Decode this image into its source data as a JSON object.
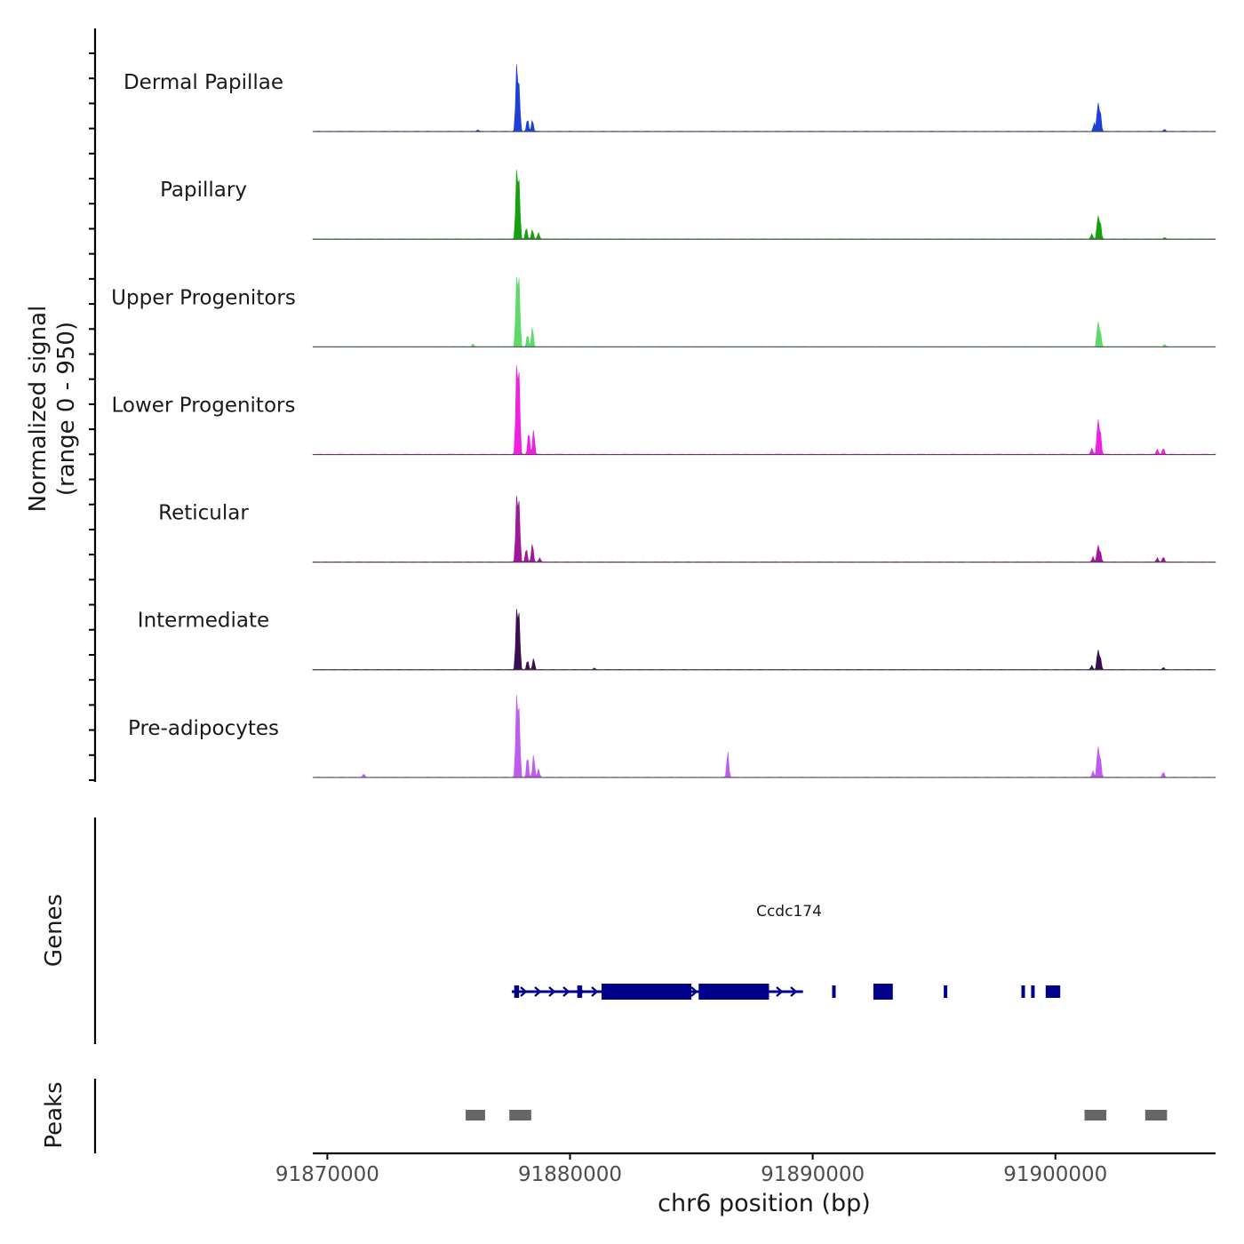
{
  "chart_data": {
    "type": "area",
    "title": "",
    "ylabel_line1": "Normalized signal",
    "ylabel_line2": "(range 0 - 950)",
    "xlabel": "chr6 position (bp)",
    "xlim": [
      91869400,
      91906600
    ],
    "ylim": [
      0,
      950
    ],
    "xticks": [
      {
        "value": 91870000,
        "label": "91870000"
      },
      {
        "value": 91880000,
        "label": "91880000"
      },
      {
        "value": 91890000,
        "label": "91890000"
      },
      {
        "value": 91900000,
        "label": "91900000"
      }
    ],
    "coverage_tracks": [
      {
        "name": "Dermal Papillae",
        "color": "#1E40D6",
        "peaks": [
          [
            91877800,
            620
          ],
          [
            91877900,
            430
          ],
          [
            91878250,
            120
          ],
          [
            91878450,
            110
          ],
          [
            91901600,
            80
          ],
          [
            91901750,
            270
          ],
          [
            91901850,
            190
          ],
          [
            91904500,
            20
          ],
          [
            91876200,
            15
          ]
        ]
      },
      {
        "name": "Papillary",
        "color": "#16A00E",
        "peaks": [
          [
            91877800,
            640
          ],
          [
            91877900,
            540
          ],
          [
            91878200,
            110
          ],
          [
            91878450,
            90
          ],
          [
            91878700,
            60
          ],
          [
            91901500,
            50
          ],
          [
            91901750,
            220
          ],
          [
            91901850,
            160
          ],
          [
            91904500,
            15
          ]
        ]
      },
      {
        "name": "Upper Progenitors",
        "color": "#5FD96A",
        "peaks": [
          [
            91877800,
            640
          ],
          [
            91877900,
            630
          ],
          [
            91878250,
            120
          ],
          [
            91878450,
            190
          ],
          [
            91876000,
            25
          ],
          [
            91901750,
            240
          ],
          [
            91901850,
            150
          ],
          [
            91904500,
            20
          ]
        ]
      },
      {
        "name": "Lower Progenitors",
        "color": "#F020E0",
        "peaks": [
          [
            91877800,
            820
          ],
          [
            91877900,
            750
          ],
          [
            91878300,
            220
          ],
          [
            91878500,
            240
          ],
          [
            91901500,
            60
          ],
          [
            91901750,
            330
          ],
          [
            91901850,
            220
          ],
          [
            91904200,
            50
          ],
          [
            91904450,
            60
          ]
        ]
      },
      {
        "name": "Reticular",
        "color": "#A0189A",
        "peaks": [
          [
            91877800,
            610
          ],
          [
            91877900,
            560
          ],
          [
            91878200,
            130
          ],
          [
            91878450,
            180
          ],
          [
            91878750,
            40
          ],
          [
            91901550,
            50
          ],
          [
            91901750,
            160
          ],
          [
            91901850,
            100
          ],
          [
            91904200,
            40
          ],
          [
            91904450,
            50
          ]
        ]
      },
      {
        "name": "Intermediate",
        "color": "#3A0F52",
        "peaks": [
          [
            91877800,
            560
          ],
          [
            91877900,
            520
          ],
          [
            91878250,
            90
          ],
          [
            91878500,
            110
          ],
          [
            91881000,
            15
          ],
          [
            91901500,
            40
          ],
          [
            91901750,
            190
          ],
          [
            91901850,
            120
          ],
          [
            91904450,
            20
          ]
        ]
      },
      {
        "name": "Pre-adipocytes",
        "color": "#BF5CF0",
        "peaks": [
          [
            91877800,
            760
          ],
          [
            91877900,
            630
          ],
          [
            91878250,
            200
          ],
          [
            91878500,
            220
          ],
          [
            91878700,
            80
          ],
          [
            91871500,
            30
          ],
          [
            91886500,
            250
          ],
          [
            91901550,
            60
          ],
          [
            91901750,
            290
          ],
          [
            91901850,
            190
          ],
          [
            91904450,
            50
          ]
        ]
      }
    ],
    "gene_track": {
      "label": "Genes",
      "gene_name": "Ccdc174",
      "color": "#00008B",
      "start": 91877600,
      "end": 91889600,
      "strand": "+",
      "exons": [
        [
          91877700,
          91877900
        ],
        [
          91880300,
          91880500
        ],
        [
          91881300,
          91885000
        ],
        [
          91885300,
          91888200
        ],
        [
          91890800,
          91890900
        ],
        [
          91892500,
          91893300
        ],
        [
          91895400,
          91895500
        ],
        [
          91898600,
          91898700
        ],
        [
          91899000,
          91899100
        ],
        [
          91899600,
          91900200
        ]
      ]
    },
    "peak_track": {
      "label": "Peaks",
      "color": "#666666",
      "regions": [
        [
          91875700,
          91876500
        ],
        [
          91877500,
          91878400
        ],
        [
          91901200,
          91902100
        ],
        [
          91903700,
          91904600
        ]
      ]
    }
  }
}
